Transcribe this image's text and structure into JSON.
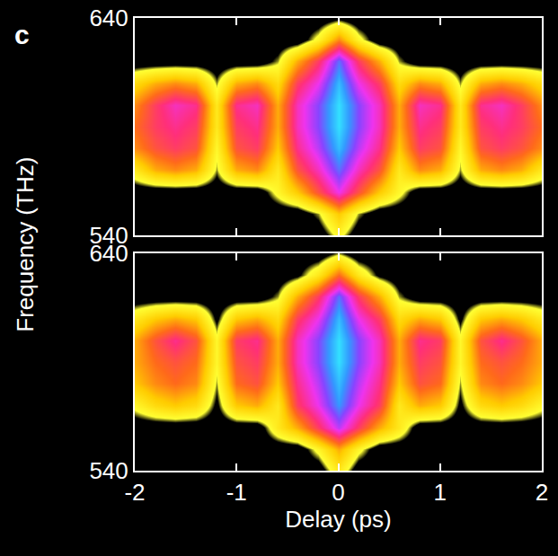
{
  "chart_data": [
    {
      "type": "heatmap",
      "annotations": [
        "c"
      ],
      "y_label": "Frequency (THz)",
      "xlim": [
        -2,
        2
      ],
      "ylim": [
        540,
        640
      ],
      "xticks": [
        -2,
        -1,
        0,
        1,
        2
      ],
      "yticks": [
        540,
        640
      ],
      "tick_labels": "y",
      "grid": false,
      "zlim": [
        0,
        1
      ],
      "x": [
        -2,
        -1.8,
        -1.6,
        -1.4,
        -1.2,
        -1,
        -0.8,
        -0.6,
        -0.4,
        -0.2,
        0,
        0.2,
        0.4,
        0.6,
        0.8,
        1,
        1.2,
        1.4,
        1.6,
        1.8,
        2
      ],
      "y": [
        540,
        550,
        560,
        570,
        580,
        590,
        600,
        610,
        620,
        630,
        640
      ],
      "z": [
        [
          0,
          0,
          0,
          0,
          0,
          0,
          0,
          0,
          0,
          0,
          0.15,
          0,
          0,
          0,
          0,
          0,
          0,
          0,
          0,
          0,
          0
        ],
        [
          0,
          0,
          0,
          0,
          0,
          0,
          0,
          0,
          0,
          0.1,
          0.3,
          0.1,
          0,
          0,
          0,
          0,
          0,
          0,
          0,
          0,
          0
        ],
        [
          0,
          0,
          0,
          0,
          0,
          0,
          0,
          0.15,
          0.3,
          0.5,
          0.7,
          0.5,
          0.3,
          0.15,
          0,
          0,
          0,
          0,
          0,
          0,
          0
        ],
        [
          0.2,
          0.35,
          0.4,
          0.35,
          0.1,
          0.35,
          0.4,
          0.2,
          0.5,
          0.65,
          0.85,
          0.65,
          0.5,
          0.2,
          0.4,
          0.35,
          0.1,
          0.35,
          0.4,
          0.35,
          0.2
        ],
        [
          0.4,
          0.5,
          0.55,
          0.5,
          0.15,
          0.5,
          0.55,
          0.3,
          0.6,
          0.75,
          0.95,
          0.75,
          0.6,
          0.3,
          0.55,
          0.5,
          0.15,
          0.5,
          0.55,
          0.5,
          0.4
        ],
        [
          0.45,
          0.55,
          0.6,
          0.55,
          0.2,
          0.55,
          0.6,
          0.35,
          0.65,
          0.8,
          1,
          0.8,
          0.65,
          0.35,
          0.6,
          0.55,
          0.2,
          0.55,
          0.6,
          0.55,
          0.45
        ],
        [
          0.4,
          0.55,
          0.65,
          0.6,
          0.2,
          0.6,
          0.65,
          0.35,
          0.65,
          0.8,
          1,
          0.8,
          0.65,
          0.35,
          0.65,
          0.6,
          0.2,
          0.6,
          0.65,
          0.55,
          0.4
        ],
        [
          0.25,
          0.35,
          0.4,
          0.35,
          0.1,
          0.35,
          0.4,
          0.25,
          0.55,
          0.7,
          0.95,
          0.7,
          0.55,
          0.25,
          0.4,
          0.35,
          0.1,
          0.35,
          0.4,
          0.35,
          0.25
        ],
        [
          0,
          0,
          0,
          0,
          0,
          0,
          0,
          0.1,
          0.35,
          0.55,
          0.85,
          0.55,
          0.35,
          0.1,
          0,
          0,
          0,
          0,
          0,
          0,
          0
        ],
        [
          0,
          0,
          0,
          0,
          0,
          0,
          0,
          0,
          0,
          0.15,
          0.4,
          0.15,
          0,
          0,
          0,
          0,
          0,
          0,
          0,
          0,
          0
        ],
        [
          0,
          0,
          0,
          0,
          0,
          0,
          0,
          0,
          0,
          0,
          0.05,
          0,
          0,
          0,
          0,
          0,
          0,
          0,
          0,
          0,
          0
        ]
      ]
    },
    {
      "type": "heatmap",
      "x_label": "Delay (ps)",
      "xlim": [
        -2,
        2
      ],
      "ylim": [
        540,
        640
      ],
      "xticks": [
        -2,
        -1,
        0,
        1,
        2
      ],
      "yticks": [
        540,
        640
      ],
      "grid": false,
      "zlim": [
        0,
        1
      ],
      "x": [
        -2,
        -1.8,
        -1.6,
        -1.4,
        -1.2,
        -1,
        -0.8,
        -0.6,
        -0.4,
        -0.2,
        0,
        0.2,
        0.4,
        0.6,
        0.8,
        1,
        1.2,
        1.4,
        1.6,
        1.8,
        2
      ],
      "y": [
        540,
        550,
        560,
        570,
        580,
        590,
        600,
        610,
        620,
        630,
        640
      ],
      "z": [
        [
          0,
          0,
          0,
          0,
          0,
          0,
          0,
          0,
          0,
          0,
          0.2,
          0,
          0,
          0,
          0,
          0,
          0,
          0,
          0,
          0,
          0
        ],
        [
          0,
          0,
          0,
          0,
          0,
          0,
          0,
          0,
          0,
          0.15,
          0.35,
          0.15,
          0,
          0,
          0,
          0,
          0,
          0,
          0,
          0,
          0
        ],
        [
          0,
          0,
          0,
          0,
          0,
          0,
          0,
          0.2,
          0.35,
          0.55,
          0.75,
          0.55,
          0.35,
          0.2,
          0,
          0,
          0,
          0,
          0,
          0,
          0
        ],
        [
          0.15,
          0.25,
          0.3,
          0.25,
          0.05,
          0.3,
          0.35,
          0.2,
          0.55,
          0.7,
          0.9,
          0.7,
          0.55,
          0.2,
          0.35,
          0.3,
          0.05,
          0.25,
          0.3,
          0.25,
          0.15
        ],
        [
          0.3,
          0.4,
          0.45,
          0.4,
          0.1,
          0.45,
          0.5,
          0.3,
          0.6,
          0.75,
          0.95,
          0.75,
          0.6,
          0.3,
          0.5,
          0.45,
          0.1,
          0.4,
          0.45,
          0.4,
          0.3
        ],
        [
          0.35,
          0.45,
          0.5,
          0.45,
          0.15,
          0.5,
          0.55,
          0.35,
          0.65,
          0.8,
          1,
          0.8,
          0.65,
          0.35,
          0.55,
          0.5,
          0.15,
          0.45,
          0.5,
          0.45,
          0.35
        ],
        [
          0.35,
          0.5,
          0.6,
          0.5,
          0.15,
          0.55,
          0.6,
          0.35,
          0.65,
          0.8,
          1,
          0.8,
          0.65,
          0.35,
          0.6,
          0.55,
          0.15,
          0.5,
          0.6,
          0.5,
          0.35
        ],
        [
          0.2,
          0.3,
          0.35,
          0.3,
          0.05,
          0.3,
          0.35,
          0.25,
          0.55,
          0.7,
          0.95,
          0.7,
          0.55,
          0.25,
          0.35,
          0.3,
          0.05,
          0.3,
          0.35,
          0.3,
          0.2
        ],
        [
          0,
          0,
          0,
          0,
          0,
          0,
          0,
          0.1,
          0.35,
          0.55,
          0.85,
          0.55,
          0.35,
          0.1,
          0,
          0,
          0,
          0,
          0,
          0,
          0
        ],
        [
          0,
          0,
          0,
          0,
          0,
          0,
          0,
          0,
          0.05,
          0.2,
          0.45,
          0.2,
          0.05,
          0,
          0,
          0,
          0,
          0,
          0,
          0,
          0
        ],
        [
          0,
          0,
          0,
          0,
          0,
          0,
          0,
          0,
          0,
          0,
          0.1,
          0,
          0,
          0,
          0,
          0,
          0,
          0,
          0,
          0,
          0
        ]
      ]
    }
  ]
}
